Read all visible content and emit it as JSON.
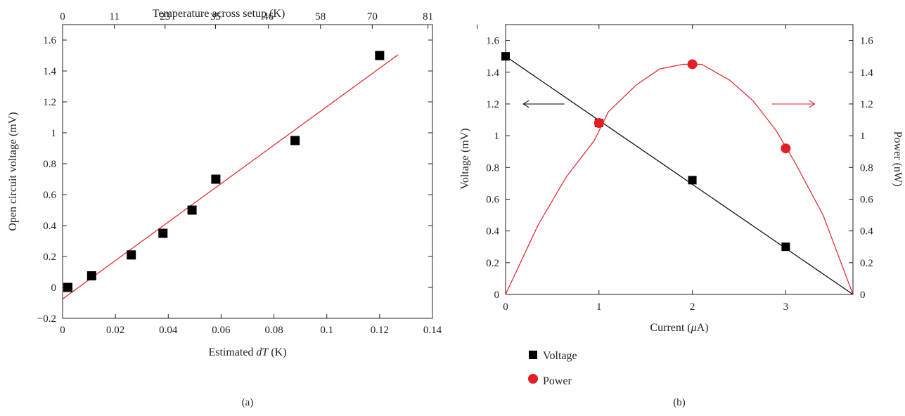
{
  "chart_data": [
    {
      "type": "scatter",
      "panel": "(a)",
      "xlabel_prefix": "Estimated ",
      "xlabel_var": "dT",
      "xlabel_suffix": " (K)",
      "ylabel": "Open circuit voltage (mV)",
      "top_xlabel": "Temperature across setup (K)",
      "xlim": [
        0,
        0.14
      ],
      "ylim": [
        -0.2,
        1.7
      ],
      "x_ticks": [
        0,
        0.02,
        0.04,
        0.06,
        0.08,
        0.1,
        0.12,
        0.14
      ],
      "x_tick_labels": [
        "0",
        "0.02",
        "0.04",
        "0.06",
        "0.08",
        "0.1",
        "0.12",
        "0.14"
      ],
      "y_ticks": [
        -0.2,
        0,
        0.2,
        0.4,
        0.6,
        0.8,
        1,
        1.2,
        1.4,
        1.6
      ],
      "y_tick_labels": [
        "−0.2",
        "0",
        "0.2",
        "0.4",
        "0.6",
        "0.8",
        "1",
        "1.2",
        "1.4",
        "1.6"
      ],
      "top_ticks": [
        0,
        0.0196,
        0.0388,
        0.0579,
        0.0779,
        0.0976,
        0.1172,
        0.1383,
        0.1569
      ],
      "top_tick_labels": [
        "0",
        "11",
        "23",
        "35",
        "46",
        "58",
        "70",
        "81"
      ],
      "grid": false,
      "series": [
        {
          "marker": "square",
          "color": "#000000",
          "x": [
            0.002,
            0.011,
            0.026,
            0.038,
            0.049,
            0.058,
            0.088,
            0.12
          ],
          "y": [
            0.0,
            0.075,
            0.21,
            0.35,
            0.5,
            0.7,
            0.95,
            1.5
          ]
        }
      ],
      "fit_line": {
        "color": "#e31e24",
        "x": [
          0,
          0.127
        ],
        "y": [
          -0.075,
          1.505
        ]
      }
    },
    {
      "type": "line",
      "panel": "(b)",
      "xlabel_prefix": "Current (",
      "xlabel_var": "μ",
      "xlabel_suffix": "A)",
      "ylabel": "Voltage (mV)",
      "y2label": "Power (nW)",
      "xlim": [
        0,
        3.72
      ],
      "ylim": [
        0,
        1.7
      ],
      "y2lim": [
        0,
        1.7
      ],
      "x_ticks": [
        0,
        1,
        2,
        3
      ],
      "x_tick_labels": [
        "0",
        "1",
        "2",
        "3"
      ],
      "y_ticks": [
        0,
        0.2,
        0.4,
        0.6,
        0.8,
        1,
        1.2,
        1.4,
        1.6
      ],
      "y_tick_labels": [
        "0",
        "0.2",
        "0.4",
        "0.6",
        "0.8",
        "1",
        "1.2",
        "1.4",
        "1.6"
      ],
      "y2_tick_labels": [
        "0",
        "0.2",
        "0.4",
        "0.6",
        "0.8",
        "1",
        "1.2",
        "1.4",
        "1.6"
      ],
      "grid": false,
      "legend_position": "bottom-left, below plot",
      "series": [
        {
          "name": "Voltage",
          "marker": "square",
          "color": "#000000",
          "axis": "left",
          "x": [
            0,
            1,
            2,
            3
          ],
          "y": [
            1.5,
            1.08,
            0.72,
            0.3
          ],
          "line": {
            "x": [
              0,
              3.72
            ],
            "y": [
              1.5,
              0
            ]
          }
        },
        {
          "name": "Power",
          "marker": "circle",
          "color": "#e31e24",
          "axis": "right",
          "x": [
            1,
            2,
            3
          ],
          "y": [
            1.08,
            1.45,
            0.92
          ],
          "curve": {
            "x": [
              0,
              0.35,
              0.65,
              0.95,
              1.1,
              1.4,
              1.65,
              1.9,
              2.1,
              2.4,
              2.65,
              2.9,
              3.1,
              3.4,
              3.72
            ],
            "y": [
              0,
              0.44,
              0.74,
              0.97,
              1.15,
              1.32,
              1.42,
              1.45,
              1.45,
              1.35,
              1.22,
              1.03,
              0.83,
              0.5,
              0
            ]
          }
        }
      ],
      "annotations": [
        {
          "type": "arrow-left",
          "axis": "left",
          "color": "#000000",
          "x": [
            0.63,
            0.19
          ],
          "y": 1.2
        },
        {
          "type": "arrow-right",
          "axis": "right",
          "color": "#e31e24",
          "x": [
            2.85,
            3.31
          ],
          "y": 1.2
        }
      ]
    }
  ]
}
